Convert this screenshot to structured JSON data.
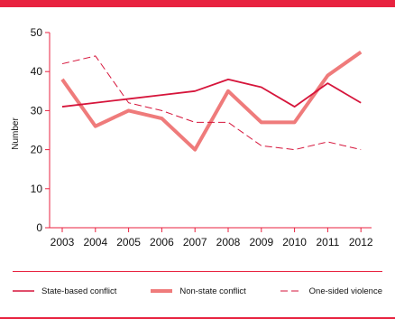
{
  "chart_data": {
    "type": "line",
    "title": "",
    "xlabel": "",
    "ylabel": "Number",
    "categories": [
      "2003",
      "2004",
      "2005",
      "2006",
      "2007",
      "2008",
      "2009",
      "2010",
      "2011",
      "2012"
    ],
    "ylim": [
      0,
      50
    ],
    "yticks": [
      0,
      10,
      20,
      30,
      40,
      50
    ],
    "grid": false,
    "legend_position": "bottom",
    "series": [
      {
        "name": "State-based conflict",
        "values": [
          31,
          32,
          33,
          34,
          35,
          38,
          36,
          31,
          37,
          32
        ],
        "color": "#d6153b",
        "style": "solid-thin"
      },
      {
        "name": "Non-state conflict",
        "values": [
          38,
          26,
          30,
          28,
          20,
          35,
          27,
          27,
          39,
          45
        ],
        "color": "#ef7b7b",
        "style": "solid-thick"
      },
      {
        "name": "One-sided violence",
        "values": [
          42,
          44,
          32,
          30,
          27,
          27,
          21,
          20,
          22,
          20
        ],
        "color": "#d6153b",
        "style": "dashed"
      }
    ]
  },
  "colors": {
    "accent": "#e8223f",
    "axis": "#e8223f"
  }
}
